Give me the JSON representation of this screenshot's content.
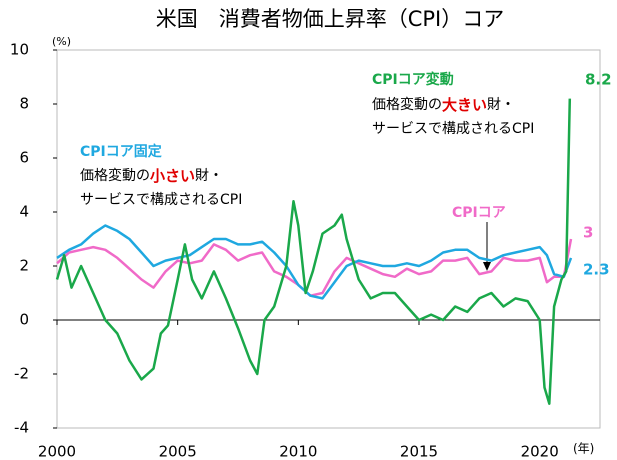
{
  "chart_data": {
    "type": "line",
    "title": "米国　消費者物価上昇率（CPI）コア",
    "y_unit": "(%)",
    "x_unit": "(年)",
    "xlim": [
      2000,
      2022.5
    ],
    "xticks": [
      2000,
      2005,
      2010,
      2015,
      2020
    ],
    "ylim": [
      -4,
      10
    ],
    "yticks": [
      -4,
      -2,
      0,
      2,
      4,
      6,
      8,
      10
    ],
    "series": [
      {
        "name": "CPIコア固定",
        "color": "#1fa8e0",
        "x": [
          2000,
          2000.5,
          2001,
          2001.5,
          2002,
          2002.5,
          2003,
          2003.5,
          2004,
          2004.5,
          2005,
          2005.5,
          2006,
          2006.5,
          2007,
          2007.5,
          2008,
          2008.5,
          2009,
          2009.5,
          2010,
          2010.5,
          2011,
          2011.5,
          2012,
          2012.5,
          2013,
          2013.5,
          2014,
          2014.5,
          2015,
          2015.5,
          2016,
          2016.5,
          2017,
          2017.5,
          2018,
          2018.5,
          2019,
          2019.5,
          2020,
          2020.3,
          2020.6,
          2021,
          2021.3
        ],
        "values": [
          2.3,
          2.6,
          2.8,
          3.2,
          3.5,
          3.3,
          3.0,
          2.5,
          2.0,
          2.2,
          2.3,
          2.4,
          2.7,
          3.0,
          3.0,
          2.8,
          2.8,
          2.9,
          2.5,
          2.0,
          1.3,
          0.9,
          0.8,
          1.4,
          2.0,
          2.2,
          2.1,
          2.0,
          2.0,
          2.1,
          2.0,
          2.2,
          2.5,
          2.6,
          2.6,
          2.3,
          2.2,
          2.4,
          2.5,
          2.6,
          2.7,
          2.4,
          1.7,
          1.6,
          2.3
        ]
      },
      {
        "name": "CPIコア",
        "color": "#f06ac8",
        "x": [
          2000,
          2000.5,
          2001,
          2001.5,
          2002,
          2002.5,
          2003,
          2003.5,
          2004,
          2004.5,
          2005,
          2005.5,
          2006,
          2006.5,
          2007,
          2007.5,
          2008,
          2008.5,
          2009,
          2009.5,
          2010,
          2010.5,
          2011,
          2011.5,
          2012,
          2012.5,
          2013,
          2013.5,
          2014,
          2014.5,
          2015,
          2015.5,
          2016,
          2016.5,
          2017,
          2017.5,
          2018,
          2018.5,
          2019,
          2019.5,
          2020,
          2020.3,
          2020.6,
          2021,
          2021.3
        ],
        "values": [
          2.1,
          2.5,
          2.6,
          2.7,
          2.6,
          2.3,
          1.9,
          1.5,
          1.2,
          1.8,
          2.2,
          2.1,
          2.2,
          2.8,
          2.6,
          2.2,
          2.4,
          2.5,
          1.8,
          1.6,
          1.3,
          0.9,
          1.0,
          1.8,
          2.3,
          2.1,
          1.9,
          1.7,
          1.6,
          1.9,
          1.7,
          1.8,
          2.2,
          2.2,
          2.3,
          1.7,
          1.8,
          2.3,
          2.2,
          2.2,
          2.3,
          1.4,
          1.6,
          1.6,
          3.0
        ]
      },
      {
        "name": "CPIコア変動",
        "color": "#1aa84a",
        "x": [
          2000,
          2000.3,
          2000.6,
          2001,
          2001.5,
          2002,
          2002.5,
          2003,
          2003.5,
          2004,
          2004.3,
          2004.6,
          2005,
          2005.3,
          2005.6,
          2006,
          2006.5,
          2007,
          2007.5,
          2008,
          2008.3,
          2008.6,
          2009,
          2009.5,
          2009.8,
          2010,
          2010.3,
          2010.6,
          2011,
          2011.5,
          2011.8,
          2012,
          2012.5,
          2013,
          2013.5,
          2014,
          2014.5,
          2015,
          2015.5,
          2016,
          2016.5,
          2017,
          2017.5,
          2018,
          2018.5,
          2019,
          2019.5,
          2020,
          2020.2,
          2020.4,
          2020.6,
          2020.9,
          2021.1,
          2021.25
        ],
        "values": [
          1.5,
          2.4,
          1.2,
          2.0,
          1.0,
          0.0,
          -0.5,
          -1.5,
          -2.2,
          -1.8,
          -0.5,
          -0.2,
          1.5,
          2.8,
          1.5,
          0.8,
          1.8,
          0.8,
          -0.3,
          -1.5,
          -2.0,
          0.0,
          0.5,
          2.0,
          4.4,
          3.5,
          1.0,
          1.8,
          3.2,
          3.5,
          3.9,
          3.0,
          1.5,
          0.8,
          1.0,
          1.0,
          0.5,
          0.0,
          0.2,
          0.0,
          0.5,
          0.3,
          0.8,
          1.0,
          0.5,
          0.8,
          0.7,
          0.0,
          -2.5,
          -3.1,
          0.5,
          1.5,
          1.8,
          8.2
        ]
      }
    ],
    "notes": {
      "sticky": {
        "title": "CPIコア固定",
        "line1": [
          "価格変動の",
          "小さい",
          "財・"
        ],
        "line2": "サービスで構成されるCPI"
      },
      "flexible": {
        "title": "CPIコア変動",
        "line1": [
          "価格変動の",
          "大きい",
          "財・"
        ],
        "line2": "サービスで構成されるCPI"
      },
      "core": "CPIコア"
    }
  }
}
